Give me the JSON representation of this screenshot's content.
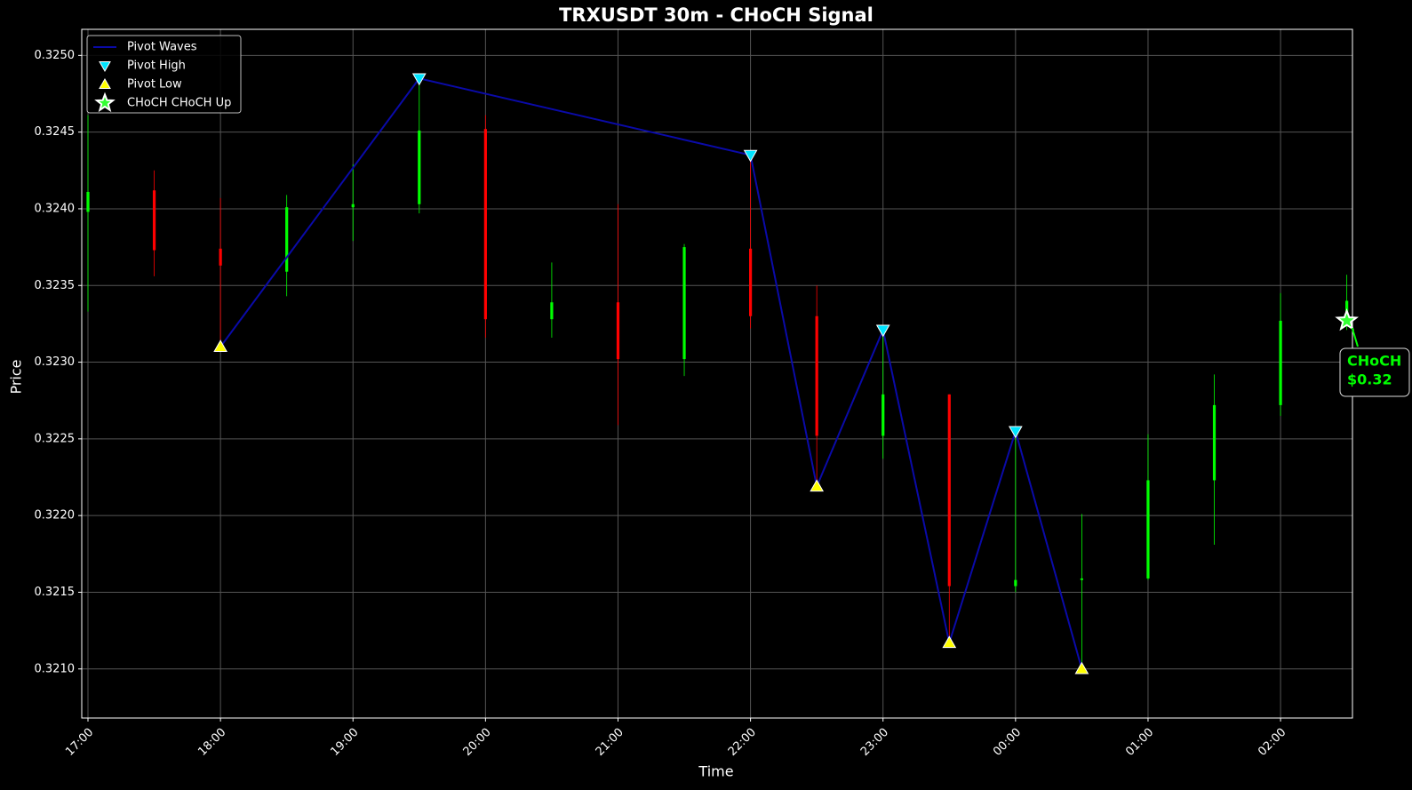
{
  "chart_data": {
    "type": "candlestick",
    "title": "TRXUSDT 30m - CHoCH Signal",
    "x_label": "Time",
    "y_label": "Price",
    "categories": [
      "17:00",
      null,
      "18:00",
      null,
      "19:00",
      null,
      "20:00",
      null,
      "21:00",
      null,
      "22:00",
      null,
      "23:00",
      null,
      "00:00",
      null,
      "01:00",
      null,
      "02:00",
      null
    ],
    "open": [
      0.32398,
      0.32412,
      0.32374,
      0.32359,
      0.32401,
      0.32403,
      0.32452,
      0.32328,
      0.32339,
      0.32302,
      0.32374,
      0.3233,
      0.32252,
      0.32279,
      0.32154,
      0.32158,
      0.32159,
      0.32223,
      0.32272,
      0.32327
    ],
    "high": [
      0.32461,
      0.32425,
      0.32407,
      0.32409,
      0.32429,
      0.32485,
      0.32461,
      0.32365,
      0.32403,
      0.32377,
      0.32435,
      0.3235,
      0.32321,
      0.32279,
      0.32255,
      0.32201,
      0.32253,
      0.32292,
      0.32345,
      0.32357
    ],
    "low": [
      0.32333,
      0.32356,
      0.3231,
      0.32343,
      0.32379,
      0.32397,
      0.32316,
      0.32316,
      0.32259,
      0.32291,
      0.32322,
      0.32219,
      0.32237,
      0.32117,
      0.3215,
      0.321,
      0.32158,
      0.32181,
      0.32265,
      0.32321
    ],
    "close": [
      0.32411,
      0.32373,
      0.32363,
      0.32401,
      0.32403,
      0.32451,
      0.32328,
      0.32339,
      0.32302,
      0.32375,
      0.3233,
      0.32252,
      0.32279,
      0.32154,
      0.32158,
      0.32159,
      0.32223,
      0.32272,
      0.32327,
      0.3234
    ],
    "up_color": "#00ff00",
    "down_color": "#ff0000",
    "ylim": [
      0.32068,
      0.32517
    ],
    "yticks": [
      {
        "value": 0.321,
        "label": "0.3210"
      },
      {
        "value": 0.3215,
        "label": "0.3215"
      },
      {
        "value": 0.322,
        "label": "0.3220"
      },
      {
        "value": 0.3225,
        "label": "0.3225"
      },
      {
        "value": 0.323,
        "label": "0.3230"
      },
      {
        "value": 0.3235,
        "label": "0.3235"
      },
      {
        "value": 0.324,
        "label": "0.3240"
      },
      {
        "value": 0.3245,
        "label": "0.3245"
      },
      {
        "value": 0.325,
        "label": "0.3250"
      }
    ],
    "grid": true,
    "legend": "upper left",
    "overlays": [
      {
        "type": "line",
        "name": "Pivot Waves",
        "color": "#0a0aa8",
        "x": [
          2,
          5,
          10,
          11,
          12,
          13,
          14,
          15
        ],
        "values": [
          0.3231,
          0.32485,
          0.32435,
          0.32219,
          0.32321,
          0.32117,
          0.32255,
          0.321
        ]
      },
      {
        "type": "triangle-down",
        "name": "Pivot High",
        "color": "#00e5ff",
        "x": [
          5,
          10,
          12,
          14
        ],
        "values": [
          0.32485,
          0.32435,
          0.32321,
          0.32255
        ]
      },
      {
        "type": "triangle-up",
        "name": "Pivot Low",
        "color": "#ffff00",
        "x": [
          2,
          11,
          13,
          15
        ],
        "values": [
          0.3231,
          0.32219,
          0.32117,
          0.321
        ]
      },
      {
        "type": "star",
        "name": "CHoCH CHoCH Up",
        "color": "#33ff33",
        "x": [
          19
        ],
        "values": [
          0.32327
        ]
      }
    ],
    "annotation": {
      "lines": [
        "CHoCH",
        "$0.32"
      ],
      "color": "#00ff00"
    }
  }
}
